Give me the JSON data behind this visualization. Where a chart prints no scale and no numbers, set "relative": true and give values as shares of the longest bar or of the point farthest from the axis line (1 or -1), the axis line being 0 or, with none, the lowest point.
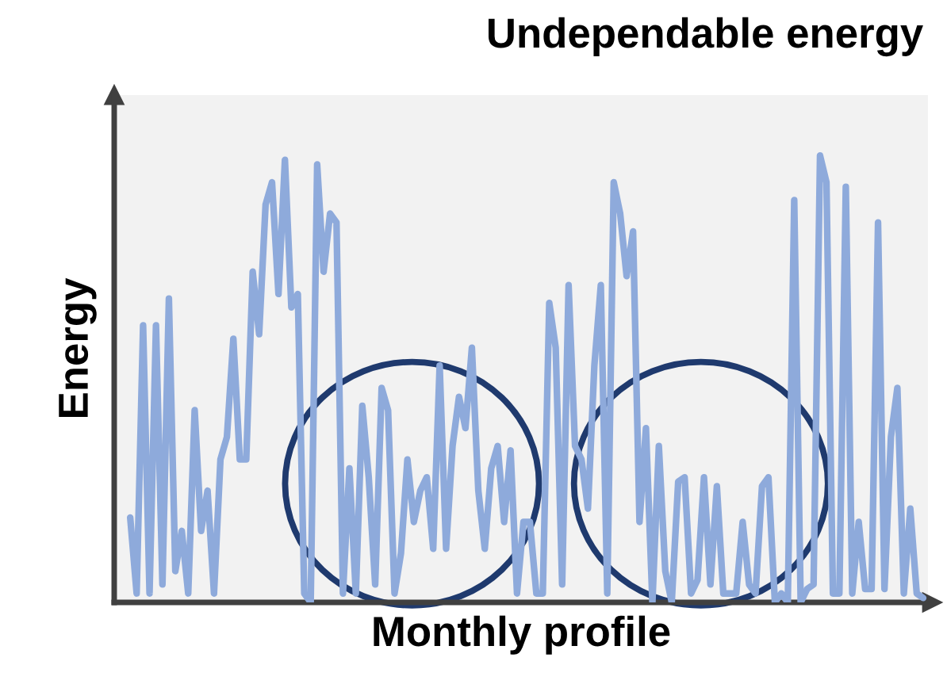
{
  "chart_data": {
    "type": "line",
    "relative": true,
    "title": "Undependable energy",
    "xlabel": "Monthly profile",
    "ylabel": "Energy",
    "categories": [
      null,
      null,
      null,
      null,
      null,
      null,
      null,
      null,
      null,
      null,
      null,
      null,
      null,
      null,
      null,
      null,
      null,
      null,
      null,
      null,
      null,
      null,
      null,
      null,
      null,
      null,
      null,
      null,
      null,
      null,
      null,
      null,
      null,
      null,
      null,
      null,
      null,
      null,
      null,
      null,
      null,
      null,
      null,
      null,
      null,
      null,
      null,
      null,
      null,
      null,
      null,
      null,
      null,
      null,
      null,
      null,
      null,
      null,
      null,
      null,
      null,
      null,
      null,
      null,
      null,
      null,
      null,
      null,
      null,
      null,
      null,
      null,
      null,
      null,
      null,
      null,
      null,
      null,
      null,
      null,
      null,
      null,
      null,
      null,
      null,
      null,
      null,
      null,
      null,
      null,
      null,
      null,
      null,
      null,
      null,
      null,
      null,
      null,
      null,
      null,
      null,
      null,
      null,
      null,
      null,
      null,
      null,
      null,
      null,
      null,
      null,
      null,
      null,
      null,
      null,
      null,
      null,
      null,
      null,
      null,
      null,
      null,
      null,
      null
    ],
    "color": "#8eaadb",
    "values": [
      0.19,
      0.02,
      0.62,
      0.02,
      0.62,
      0.04,
      0.68,
      0.07,
      0.16,
      0.02,
      0.43,
      0.16,
      0.25,
      0.02,
      0.32,
      0.37,
      0.59,
      0.32,
      0.32,
      0.74,
      0.6,
      0.89,
      0.94,
      0.69,
      0.99,
      0.66,
      0.69,
      0.02,
      0,
      0.98,
      0.74,
      0.87,
      0.85,
      0.02,
      0.3,
      0.02,
      0.44,
      0.28,
      0.04,
      0.48,
      0.43,
      0.02,
      0.11,
      0.32,
      0.18,
      0.25,
      0.28,
      0.12,
      0.53,
      0.12,
      0.35,
      0.46,
      0.39,
      0.57,
      0.25,
      0.12,
      0.3,
      0.35,
      0.18,
      0.34,
      0.02,
      0.18,
      0.18,
      0.02,
      0.02,
      0.67,
      0.57,
      0.04,
      0.71,
      0.35,
      0.32,
      0.21,
      0.53,
      0.71,
      0.02,
      0.94,
      0.87,
      0.73,
      0.83,
      0.18,
      0.39,
      0,
      0.35,
      0.07,
      0,
      0.27,
      0.28,
      0.02,
      0.05,
      0.28,
      0.04,
      0.26,
      0.02,
      0.02,
      0.02,
      0.18,
      0.04,
      0.02,
      0.26,
      0.28,
      0,
      0.02,
      0,
      0.9,
      0,
      0.03,
      0.04,
      1,
      0.94,
      0.02,
      0.02,
      0.93,
      0.02,
      0.18,
      0.03,
      0.03,
      0.85,
      0.03,
      0.37,
      0.48,
      0.02,
      0.21,
      0.02,
      0.01
    ]
  }
}
